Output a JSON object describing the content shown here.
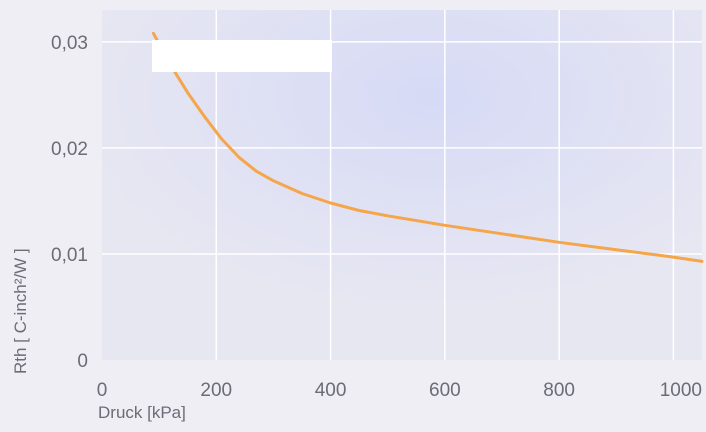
{
  "chart_data": {
    "type": "line",
    "title": "",
    "xlabel": "Druck [kPa]",
    "ylabel": "Rth [  C-inch²/W ]",
    "xlim": [
      0,
      1050
    ],
    "ylim": [
      0,
      0.033
    ],
    "x_ticks": [
      0,
      200,
      400,
      600,
      800,
      1000
    ],
    "x_tick_labels": [
      "0",
      "200",
      "400",
      "600",
      "800",
      "1000"
    ],
    "y_ticks": [
      0,
      0.01,
      0.02,
      0.03
    ],
    "y_tick_labels": [
      "0",
      "0,01",
      "0,02",
      "0,03"
    ],
    "grid": true,
    "legend": "none",
    "colors": {
      "plot_background": "#e6e6f2",
      "plot_highlight": "#d8dcf4",
      "grid": "#ffffff",
      "line": "#f5a54a",
      "text": "#6c6c78"
    },
    "series": [
      {
        "x": [
          90,
          120,
          150,
          180,
          210,
          240,
          270,
          300,
          350,
          400,
          450,
          500,
          600,
          700,
          800,
          900,
          1000,
          1050
        ],
        "y": [
          0.0308,
          0.0278,
          0.0252,
          0.0229,
          0.0208,
          0.0191,
          0.0178,
          0.0169,
          0.0157,
          0.0148,
          0.0141,
          0.0136,
          0.0127,
          0.0119,
          0.0111,
          0.0104,
          0.0097,
          0.0093
        ]
      }
    ]
  }
}
